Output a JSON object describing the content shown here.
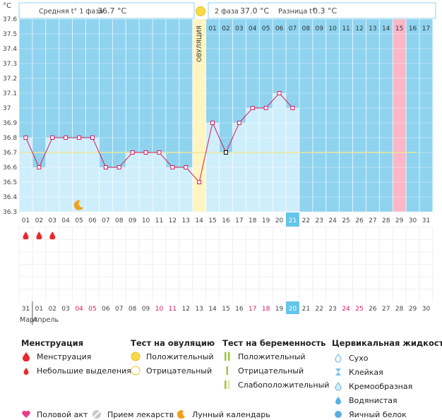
{
  "unit_label": "°C",
  "header": {
    "phase1": "Средняя t° 1 фаза",
    "phase1_value": "36.7 °C",
    "phase2": "2 фаза",
    "phase2_value": "37.0 °C",
    "diff": "Разница t°",
    "diff_value": "0.3 °C"
  },
  "ovulation_label": "ОВУЛЯЦИЯ",
  "month_labels": {
    "march": "Март",
    "april": "Апрель"
  },
  "colors": {
    "chart_bg": "#8fd3ef",
    "bar": "#cfeefb",
    "line": "#d81b5a",
    "ovulation": "#fff5c0",
    "period_day": "#fbb6c8",
    "today": "#62c5ea",
    "avg_line": "#ece79a"
  },
  "chart_data": {
    "type": "line",
    "ylabel": "°C",
    "ylim": [
      36.3,
      37.6
    ],
    "yticks": [
      "37.6",
      "37.5",
      "37.4",
      "37.3",
      "37.2",
      "37.1",
      "37",
      "36.9",
      "36.8",
      "36.7",
      "36.6",
      "36.5",
      "36.4",
      "36.3"
    ],
    "cycle_days": [
      "01",
      "02",
      "03",
      "04",
      "05",
      "06",
      "07",
      "08",
      "09",
      "10",
      "11",
      "12",
      "13",
      "14",
      "15",
      "16",
      "17",
      "18",
      "19",
      "20",
      "21",
      "22",
      "23",
      "24",
      "25",
      "26",
      "27",
      "28",
      "29",
      "30",
      "31"
    ],
    "top_days": [
      "01",
      "02",
      "03",
      "04",
      "05",
      "06",
      "07",
      "08",
      "09",
      "10",
      "11",
      "12",
      "13",
      "14",
      "15",
      "16",
      "17"
    ],
    "dates": [
      "31",
      "01",
      "02",
      "03",
      "04",
      "05",
      "06",
      "07",
      "08",
      "09",
      "10",
      "11",
      "12",
      "13",
      "14",
      "15",
      "16",
      "17",
      "18",
      "19",
      "20",
      "21",
      "22",
      "23",
      "24",
      "25",
      "26",
      "27",
      "28",
      "29",
      "30"
    ],
    "weekend_dates": [
      5,
      6,
      11,
      12,
      18,
      19,
      25,
      26
    ],
    "temperatures": [
      36.8,
      36.6,
      36.8,
      36.8,
      36.8,
      36.8,
      36.6,
      36.6,
      36.7,
      36.7,
      36.7,
      36.6,
      36.6,
      36.5,
      36.9,
      36.7,
      36.9,
      37.0,
      37.0,
      37.1,
      37.0
    ],
    "ovulation_day": 14,
    "today_day": 21,
    "highlight_day": 29,
    "cover_line": 36.7,
    "menstruation_days": [
      1,
      2,
      3
    ],
    "moon_day": 5
  },
  "legend": {
    "menstruation": {
      "title": "Менструация",
      "items": [
        "Менструация",
        "Небольшие выделения"
      ]
    },
    "ovulation_test": {
      "title": "Тест на овуляцию",
      "items": [
        "Положительный",
        "Отрицательный"
      ]
    },
    "pregnancy_test": {
      "title": "Тест на беременность",
      "items": [
        "Положительный",
        "Отрицательный",
        "Слабоположительный"
      ]
    },
    "cervical": {
      "title": "Цервикальная жидкость",
      "items": [
        "Сухо",
        "Клейкая",
        "Кремообразная",
        "Водянистая",
        "Яичный белок"
      ]
    },
    "bottom": [
      "Половой акт",
      "Прием лекарств",
      "Лунный календарь"
    ]
  }
}
